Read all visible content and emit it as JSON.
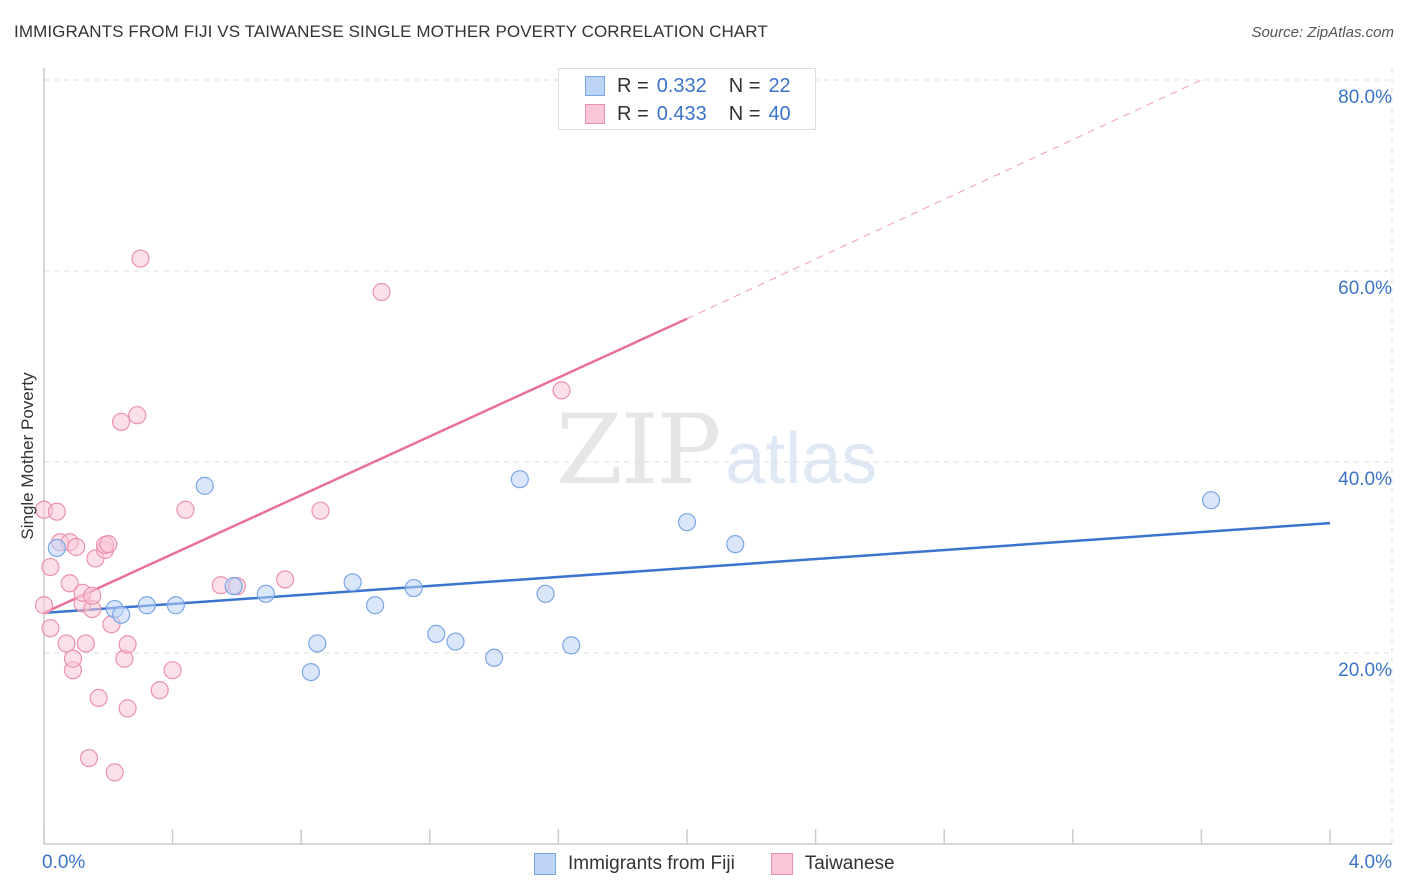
{
  "title": "IMMIGRANTS FROM FIJI VS TAIWANESE SINGLE MOTHER POVERTY CORRELATION CHART",
  "source": "Source: ZipAtlas.com",
  "watermark": {
    "zip": "ZIP",
    "atlas": "atlas"
  },
  "legend": {
    "r_label": "R =",
    "n_label": "N =",
    "fiji": {
      "r": "0.332",
      "n": "22"
    },
    "taiwanese": {
      "r": "0.433",
      "n": "40"
    }
  },
  "bottom_legend": {
    "fiji": "Immigrants from Fiji",
    "taiwanese": "Taiwanese"
  },
  "axes": {
    "y_title": "Single Mother Poverty",
    "x_min_label": "0.0%",
    "x_max_label": "4.0%",
    "y_ticks": [
      "80.0%",
      "60.0%",
      "40.0%",
      "20.0%"
    ]
  },
  "colors": {
    "fiji_fill": "#bcd4f5",
    "fiji_stroke": "#7aa6e6",
    "fiji_line": "#3a74cf",
    "taiwanese_fill": "#f9c7d7",
    "taiwanese_stroke": "#ec91ad",
    "taiwanese_line": "#e8709a",
    "grid": "#dddddd",
    "axis": "#cccccc",
    "tick_label": "#3a74c7"
  },
  "chart_data": {
    "type": "scatter",
    "title": "IMMIGRANTS FROM FIJI VS TAIWANESE SINGLE MOTHER POVERTY CORRELATION CHART",
    "xlabel": "",
    "ylabel": "Single Mother Poverty",
    "xlim": [
      0,
      4
    ],
    "ylim": [
      0,
      82
    ],
    "x_unit": "%",
    "y_unit": "%",
    "grid": "horizontal dashed",
    "y_gridlines": [
      20,
      40,
      60,
      80
    ],
    "series": [
      {
        "name": "Immigrants from Fiji",
        "r": 0.332,
        "n": 22,
        "points": [
          [
            0.04,
            31.0
          ],
          [
            0.22,
            24.6
          ],
          [
            0.24,
            24.0
          ],
          [
            0.32,
            25.0
          ],
          [
            0.41,
            25.0
          ],
          [
            0.5,
            37.5
          ],
          [
            0.59,
            27.0
          ],
          [
            0.69,
            26.2
          ],
          [
            0.83,
            18.0
          ],
          [
            0.85,
            21.0
          ],
          [
            0.96,
            27.4
          ],
          [
            1.03,
            25.0
          ],
          [
            1.15,
            26.8
          ],
          [
            1.22,
            22.0
          ],
          [
            1.28,
            21.2
          ],
          [
            1.4,
            19.5
          ],
          [
            1.48,
            38.2
          ],
          [
            1.56,
            26.2
          ],
          [
            1.64,
            20.8
          ],
          [
            2.0,
            33.7
          ],
          [
            2.15,
            31.4
          ],
          [
            3.63,
            36.0
          ]
        ],
        "trend": {
          "x": [
            0.0,
            4.0
          ],
          "y": [
            24.2,
            33.6
          ]
        }
      },
      {
        "name": "Taiwanese",
        "r": 0.433,
        "n": 40,
        "points": [
          [
            0.0,
            25.0
          ],
          [
            0.0,
            35.0
          ],
          [
            0.02,
            22.6
          ],
          [
            0.02,
            29.0
          ],
          [
            0.04,
            34.8
          ],
          [
            0.05,
            31.6
          ],
          [
            0.07,
            21.0
          ],
          [
            0.08,
            31.6
          ],
          [
            0.08,
            27.3
          ],
          [
            0.09,
            18.2
          ],
          [
            0.09,
            19.4
          ],
          [
            0.1,
            31.1
          ],
          [
            0.12,
            25.2
          ],
          [
            0.12,
            26.3
          ],
          [
            0.13,
            21.0
          ],
          [
            0.14,
            9.0
          ],
          [
            0.15,
            24.6
          ],
          [
            0.15,
            26.0
          ],
          [
            0.16,
            29.9
          ],
          [
            0.17,
            15.3
          ],
          [
            0.19,
            30.8
          ],
          [
            0.19,
            31.3
          ],
          [
            0.2,
            31.4
          ],
          [
            0.21,
            23.0
          ],
          [
            0.22,
            7.5
          ],
          [
            0.24,
            44.2
          ],
          [
            0.25,
            19.4
          ],
          [
            0.26,
            14.2
          ],
          [
            0.26,
            20.9
          ],
          [
            0.29,
            44.9
          ],
          [
            0.3,
            61.3
          ],
          [
            0.36,
            16.1
          ],
          [
            0.4,
            18.2
          ],
          [
            0.44,
            35.0
          ],
          [
            0.55,
            27.1
          ],
          [
            0.6,
            27.0
          ],
          [
            0.75,
            27.7
          ],
          [
            0.86,
            34.9
          ],
          [
            1.05,
            57.8
          ],
          [
            1.61,
            47.5
          ]
        ],
        "trend": {
          "x": [
            0.0,
            2.0
          ],
          "y": [
            24.2,
            55.0
          ]
        },
        "trend_extension": {
          "x": [
            2.0,
            3.6
          ],
          "y": [
            55.0,
            80.0
          ]
        }
      }
    ]
  }
}
